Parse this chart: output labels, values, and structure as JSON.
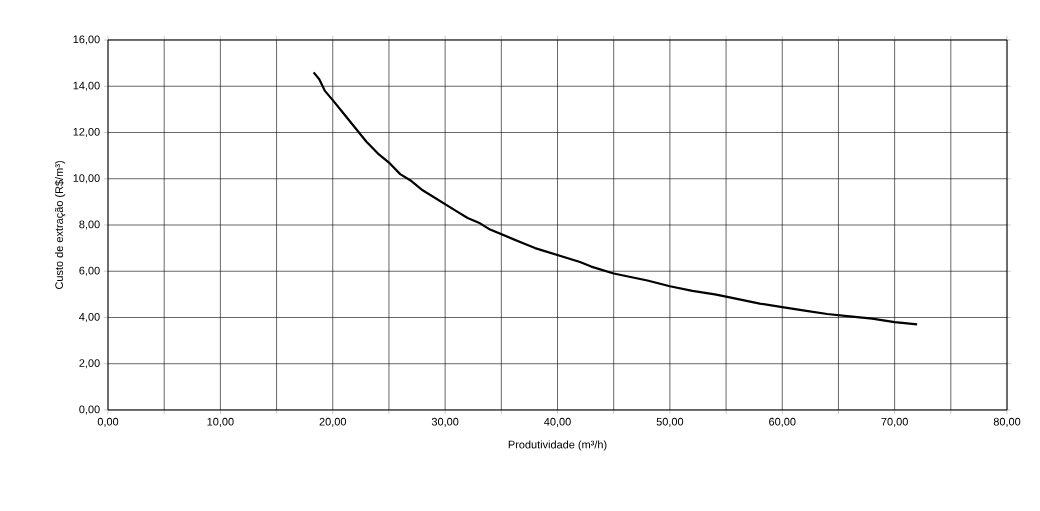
{
  "chart_data": {
    "type": "line",
    "xlabel": "Produtividade (m³/h)",
    "ylabel": "Custo de extração (R$/m³)",
    "series": [
      {
        "color": "#000000",
        "x": [
          18.3,
          18.8,
          19.3,
          20,
          21,
          22,
          23,
          24,
          25,
          26,
          27,
          28,
          29,
          30,
          31,
          32,
          33,
          34,
          35,
          36,
          37,
          38,
          40,
          42,
          43,
          45,
          47,
          48,
          50,
          52,
          54,
          55,
          57,
          58,
          60,
          62,
          64,
          65,
          66,
          68,
          70,
          71,
          72
        ],
        "values": [
          14.6,
          14.3,
          13.8,
          13.4,
          12.8,
          12.2,
          11.6,
          11.1,
          10.7,
          10.2,
          9.9,
          9.5,
          9.2,
          8.9,
          8.6,
          8.3,
          8.1,
          7.8,
          7.6,
          7.4,
          7.2,
          7.0,
          6.7,
          6.4,
          6.2,
          5.9,
          5.7,
          5.6,
          5.35,
          5.15,
          5.0,
          4.9,
          4.7,
          4.6,
          4.45,
          4.3,
          4.15,
          4.1,
          4.05,
          3.95,
          3.8,
          3.75,
          3.7
        ]
      }
    ],
    "xlim": [
      0,
      80
    ],
    "ylim": [
      0,
      16
    ],
    "xticks": [
      {
        "value": 0,
        "label": "0,00"
      },
      {
        "value": 5,
        "label": null
      },
      {
        "value": 10,
        "label": "10,00"
      },
      {
        "value": 15,
        "label": null
      },
      {
        "value": 20,
        "label": "20,00"
      },
      {
        "value": 25,
        "label": null
      },
      {
        "value": 30,
        "label": "30,00"
      },
      {
        "value": 35,
        "label": null
      },
      {
        "value": 40,
        "label": "40,00"
      },
      {
        "value": 45,
        "label": null
      },
      {
        "value": 50,
        "label": "50,00"
      },
      {
        "value": 55,
        "label": null
      },
      {
        "value": 60,
        "label": "60,00"
      },
      {
        "value": 65,
        "label": null
      },
      {
        "value": 70,
        "label": "70,00"
      },
      {
        "value": 75,
        "label": null
      },
      {
        "value": 80,
        "label": "80,00"
      }
    ],
    "yticks": [
      {
        "value": 0,
        "label": "0,00"
      },
      {
        "value": 2,
        "label": "2,00"
      },
      {
        "value": 4,
        "label": "4,00"
      },
      {
        "value": 6,
        "label": "6,00"
      },
      {
        "value": 8,
        "label": "8,00"
      },
      {
        "value": 10,
        "label": "10,00"
      },
      {
        "value": 12,
        "label": "12,00"
      },
      {
        "value": 14,
        "label": "14,00"
      },
      {
        "value": 16,
        "label": "16,00"
      }
    ],
    "grid": true,
    "marker": "none",
    "line_style": "solid"
  }
}
